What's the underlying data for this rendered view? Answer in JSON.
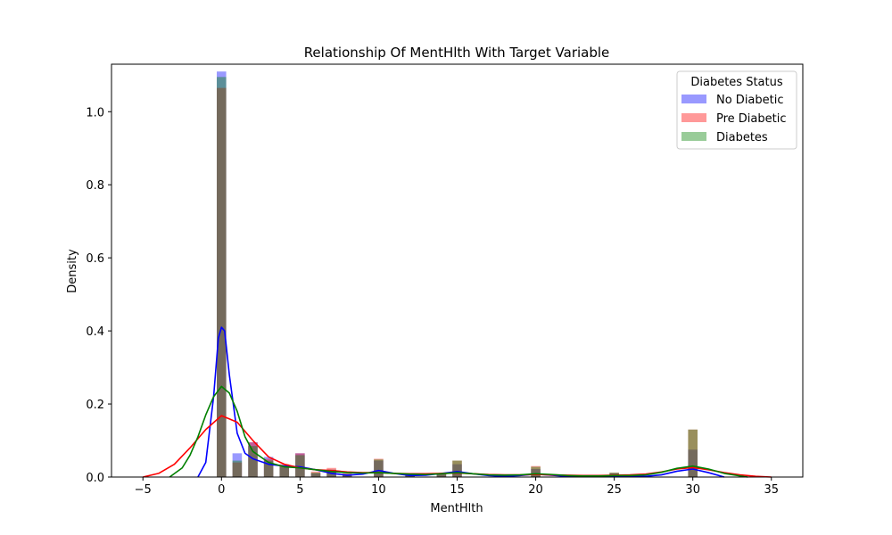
{
  "chart_data": {
    "type": "histogram-kde",
    "title": "Relationship Of MentHlth With Target Variable",
    "xlabel": "MentHlth",
    "ylabel": "Density",
    "xlim": [
      -7,
      37
    ],
    "ylim": [
      0,
      1.13
    ],
    "xticks": [
      -5,
      0,
      5,
      10,
      15,
      20,
      25,
      30,
      35
    ],
    "yticks": [
      0.0,
      0.2,
      0.4,
      0.6,
      0.8,
      1.0
    ],
    "xtick_labels": [
      "−5",
      "0",
      "5",
      "10",
      "15",
      "20",
      "25",
      "30",
      "35"
    ],
    "ytick_labels": [
      "0.0",
      "0.2",
      "0.4",
      "0.6",
      "0.8",
      "1.0"
    ],
    "bin_width": 0.6,
    "grid": false,
    "legend": {
      "title": "Diabetes Status",
      "placement": "top-right"
    },
    "series": [
      {
        "name": "No Diabetic",
        "color": "#0000ff",
        "bar_alpha": 0.4,
        "bins": [
          {
            "x": 0,
            "y": 1.11
          },
          {
            "x": 1,
            "y": 0.065
          },
          {
            "x": 2,
            "y": 0.095
          },
          {
            "x": 3,
            "y": 0.055
          },
          {
            "x": 4,
            "y": 0.03
          },
          {
            "x": 5,
            "y": 0.065
          },
          {
            "x": 6,
            "y": 0.01
          },
          {
            "x": 7,
            "y": 0.02
          },
          {
            "x": 8,
            "y": 0.008
          },
          {
            "x": 10,
            "y": 0.045
          },
          {
            "x": 12,
            "y": 0.006
          },
          {
            "x": 14,
            "y": 0.008
          },
          {
            "x": 15,
            "y": 0.035
          },
          {
            "x": 20,
            "y": 0.022
          },
          {
            "x": 25,
            "y": 0.01
          },
          {
            "x": 30,
            "y": 0.075
          }
        ],
        "kde": [
          [
            -1.5,
            0.0
          ],
          [
            -1.0,
            0.04
          ],
          [
            -0.5,
            0.22
          ],
          [
            -0.2,
            0.38
          ],
          [
            0,
            0.41
          ],
          [
            0.2,
            0.4
          ],
          [
            0.5,
            0.28
          ],
          [
            1.0,
            0.12
          ],
          [
            1.5,
            0.065
          ],
          [
            2.0,
            0.05
          ],
          [
            3.0,
            0.035
          ],
          [
            4.0,
            0.03
          ],
          [
            5.0,
            0.028
          ],
          [
            6.0,
            0.02
          ],
          [
            7.0,
            0.01
          ],
          [
            8.0,
            0.005
          ],
          [
            9.0,
            0.008
          ],
          [
            10.0,
            0.018
          ],
          [
            11.0,
            0.01
          ],
          [
            12.0,
            0.004
          ],
          [
            13.0,
            0.005
          ],
          [
            14.0,
            0.01
          ],
          [
            15.0,
            0.015
          ],
          [
            16.0,
            0.009
          ],
          [
            17.0,
            0.004
          ],
          [
            18.0,
            0.002
          ],
          [
            19.0,
            0.004
          ],
          [
            20.0,
            0.008
          ],
          [
            21.0,
            0.005
          ],
          [
            22.0,
            0.002
          ],
          [
            23.0,
            0.001
          ],
          [
            24.0,
            0.002
          ],
          [
            25.0,
            0.003
          ],
          [
            26.0,
            0.002
          ],
          [
            27.0,
            0.002
          ],
          [
            28.0,
            0.006
          ],
          [
            29.0,
            0.016
          ],
          [
            30.0,
            0.022
          ],
          [
            31.0,
            0.012
          ],
          [
            32.0,
            0.0
          ]
        ]
      },
      {
        "name": "Pre Diabetic",
        "color": "#ff0000",
        "bar_alpha": 0.4,
        "bins": [
          {
            "x": 0,
            "y": 1.065
          },
          {
            "x": 1,
            "y": 0.04
          },
          {
            "x": 2,
            "y": 0.095
          },
          {
            "x": 3,
            "y": 0.05
          },
          {
            "x": 4,
            "y": 0.035
          },
          {
            "x": 5,
            "y": 0.065
          },
          {
            "x": 6,
            "y": 0.015
          },
          {
            "x": 7,
            "y": 0.025
          },
          {
            "x": 8,
            "y": 0.01
          },
          {
            "x": 10,
            "y": 0.05
          },
          {
            "x": 12,
            "y": 0.008
          },
          {
            "x": 14,
            "y": 0.01
          },
          {
            "x": 15,
            "y": 0.045
          },
          {
            "x": 20,
            "y": 0.03
          },
          {
            "x": 25,
            "y": 0.012
          },
          {
            "x": 30,
            "y": 0.13
          }
        ],
        "kde": [
          [
            -5.0,
            0.0
          ],
          [
            -4.0,
            0.01
          ],
          [
            -3.0,
            0.035
          ],
          [
            -2.0,
            0.08
          ],
          [
            -1.0,
            0.13
          ],
          [
            0,
            0.168
          ],
          [
            1.0,
            0.15
          ],
          [
            2.0,
            0.1
          ],
          [
            3.0,
            0.055
          ],
          [
            4.0,
            0.035
          ],
          [
            5.0,
            0.025
          ],
          [
            6.0,
            0.02
          ],
          [
            7.0,
            0.018
          ],
          [
            8.0,
            0.014
          ],
          [
            9.0,
            0.012
          ],
          [
            10.0,
            0.012
          ],
          [
            11.0,
            0.01
          ],
          [
            12.0,
            0.009
          ],
          [
            13.0,
            0.009
          ],
          [
            14.0,
            0.01
          ],
          [
            15.0,
            0.011
          ],
          [
            16.0,
            0.009
          ],
          [
            17.0,
            0.007
          ],
          [
            18.0,
            0.006
          ],
          [
            19.0,
            0.006
          ],
          [
            20.0,
            0.007
          ],
          [
            21.0,
            0.006
          ],
          [
            22.0,
            0.005
          ],
          [
            23.0,
            0.004
          ],
          [
            24.0,
            0.004
          ],
          [
            25.0,
            0.005
          ],
          [
            26.0,
            0.006
          ],
          [
            27.0,
            0.008
          ],
          [
            28.0,
            0.014
          ],
          [
            29.0,
            0.022
          ],
          [
            30.0,
            0.026
          ],
          [
            31.0,
            0.02
          ],
          [
            32.0,
            0.012
          ],
          [
            33.0,
            0.006
          ],
          [
            34.0,
            0.002
          ],
          [
            35.0,
            0.0
          ]
        ]
      },
      {
        "name": "Diabetes",
        "color": "#008000",
        "bar_alpha": 0.4,
        "bins": [
          {
            "x": 0,
            "y": 1.095
          },
          {
            "x": 1,
            "y": 0.045
          },
          {
            "x": 2,
            "y": 0.085
          },
          {
            "x": 3,
            "y": 0.045
          },
          {
            "x": 4,
            "y": 0.03
          },
          {
            "x": 5,
            "y": 0.06
          },
          {
            "x": 6,
            "y": 0.012
          },
          {
            "x": 7,
            "y": 0.02
          },
          {
            "x": 8,
            "y": 0.008
          },
          {
            "x": 10,
            "y": 0.048
          },
          {
            "x": 12,
            "y": 0.007
          },
          {
            "x": 14,
            "y": 0.008
          },
          {
            "x": 15,
            "y": 0.045
          },
          {
            "x": 20,
            "y": 0.028
          },
          {
            "x": 25,
            "y": 0.012
          },
          {
            "x": 30,
            "y": 0.13
          }
        ],
        "kde": [
          [
            -3.3,
            0.0
          ],
          [
            -2.5,
            0.025
          ],
          [
            -2.0,
            0.06
          ],
          [
            -1.5,
            0.11
          ],
          [
            -1.0,
            0.17
          ],
          [
            -0.5,
            0.22
          ],
          [
            0,
            0.248
          ],
          [
            0.5,
            0.23
          ],
          [
            1.0,
            0.18
          ],
          [
            1.5,
            0.11
          ],
          [
            2.0,
            0.07
          ],
          [
            3.0,
            0.04
          ],
          [
            4.0,
            0.028
          ],
          [
            5.0,
            0.025
          ],
          [
            6.0,
            0.02
          ],
          [
            7.0,
            0.015
          ],
          [
            8.0,
            0.012
          ],
          [
            9.0,
            0.011
          ],
          [
            10.0,
            0.012
          ],
          [
            11.0,
            0.01
          ],
          [
            12.0,
            0.008
          ],
          [
            13.0,
            0.007
          ],
          [
            14.0,
            0.009
          ],
          [
            15.0,
            0.012
          ],
          [
            16.0,
            0.009
          ],
          [
            17.0,
            0.006
          ],
          [
            18.0,
            0.005
          ],
          [
            19.0,
            0.006
          ],
          [
            20.0,
            0.009
          ],
          [
            21.0,
            0.007
          ],
          [
            22.0,
            0.004
          ],
          [
            23.0,
            0.003
          ],
          [
            24.0,
            0.003
          ],
          [
            25.0,
            0.004
          ],
          [
            26.0,
            0.004
          ],
          [
            27.0,
            0.006
          ],
          [
            28.0,
            0.013
          ],
          [
            29.0,
            0.024
          ],
          [
            30.0,
            0.03
          ],
          [
            31.0,
            0.022
          ],
          [
            32.0,
            0.01
          ],
          [
            33.0,
            0.003
          ],
          [
            33.5,
            0.0
          ]
        ]
      }
    ]
  }
}
